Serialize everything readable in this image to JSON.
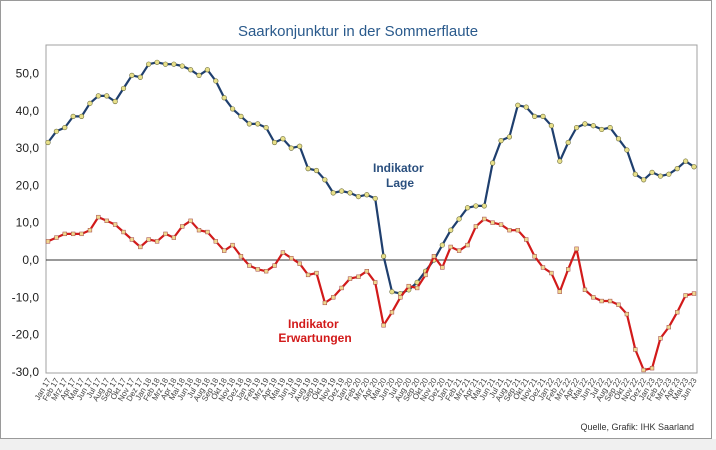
{
  "chart_data": {
    "type": "line",
    "title": "Saarkonjunktur in der Sommerflaute",
    "source": "Quelle, Grafik: IHK Saarland",
    "xlabel": "",
    "ylabel": "",
    "ylim": [
      -30,
      57.5
    ],
    "yticks": [
      50,
      40,
      30,
      20,
      10,
      0,
      -10,
      -20,
      -30
    ],
    "ytick_labels": [
      "50,0",
      "40,0",
      "30,0",
      "20,0",
      "10,0",
      "0,0",
      "-10,0",
      "-20,0",
      "-30,0"
    ],
    "grid": false,
    "categories": [
      "Jan 17",
      "Feb 17",
      "Mrz 17",
      "Apr 17",
      "Mai 17",
      "Jun 17",
      "Jul 17",
      "Aug 17",
      "Sep 17",
      "Okt 17",
      "Nov 17",
      "Dez 17",
      "Jan 18",
      "Feb 18",
      "Mrz 18",
      "Apr 18",
      "Mai 18",
      "Jun 18",
      "Jul 18",
      "Aug 18",
      "Sep 18",
      "Okt 18",
      "Nov 18",
      "Dez 18",
      "Jan 19",
      "Feb 19",
      "Mrz 19",
      "Apr 19",
      "Mai 19",
      "Jun 19",
      "Jul 19",
      "Aug 19",
      "Sep 19",
      "Okt 19",
      "Nov 19",
      "Dez 19",
      "Jan 20",
      "Feb 20",
      "Mrz 20",
      "Apr 20",
      "Mai 20",
      "Jun 20",
      "Jul 20",
      "Aug 20",
      "Sep 20",
      "Okt 20",
      "Nov 20",
      "Dez 20",
      "Jan 21",
      "Feb 21",
      "Mrz 21",
      "Apr 21",
      "Mai 21",
      "Jun 21",
      "Jul 21",
      "Aug 21",
      "Sep 21",
      "Okt 21",
      "Nov 21",
      "Dez 21",
      "Jan 22",
      "Feb 22",
      "Mrz 22",
      "Apr 22",
      "Mai 22",
      "Jun 22",
      "Jul 22",
      "Aug 22",
      "Sep 22",
      "Okt 22",
      "Nov 22",
      "Dez 22",
      "Jan 23",
      "Feb 23",
      "Mrz 23",
      "Apr 23",
      "Mai 23",
      "Jun 23"
    ],
    "series": [
      {
        "name": "Indikator Lage",
        "label_lines": [
          "Indikator",
          "Lage"
        ],
        "color": "#1f3f6e",
        "values": [
          31.5,
          34.5,
          35.5,
          38.5,
          38.5,
          42,
          44,
          44,
          42.5,
          46,
          49.5,
          49,
          52.5,
          53,
          52.5,
          52.5,
          52,
          51,
          49.5,
          51,
          48,
          43.5,
          40.5,
          38.5,
          36.5,
          36.5,
          35.5,
          31.5,
          32.5,
          30,
          30.5,
          24.5,
          24,
          21.5,
          18,
          18.5,
          18,
          17,
          17.5,
          16.5,
          1,
          -8.5,
          -9,
          -8,
          -6,
          -3,
          0,
          4,
          8,
          11,
          14,
          14.5,
          14.5,
          26,
          32,
          33,
          41.5,
          41,
          38.5,
          38.5,
          36,
          26.5,
          31.5,
          35.5,
          36.5,
          36,
          35,
          35.5,
          32.5,
          29.5,
          23,
          21.5,
          23.5,
          22.5,
          23,
          24.5,
          26.5,
          25
        ]
      },
      {
        "name": "Indikator Erwartungen",
        "label_lines": [
          "Indikator",
          "Erwartungen"
        ],
        "color": "#d21a1a",
        "values": [
          5,
          6,
          7,
          7,
          7,
          8,
          11.5,
          10.5,
          9.5,
          7.5,
          5.5,
          3.5,
          5.5,
          5,
          7,
          6,
          9,
          10.5,
          8,
          7.5,
          5,
          2.5,
          4,
          1,
          -1.5,
          -2.5,
          -3,
          -1.5,
          2,
          0.5,
          -1,
          -4,
          -3.5,
          -11.5,
          -10,
          -7.5,
          -5,
          -4.5,
          -3,
          -6,
          -17.5,
          -14,
          -10,
          -7,
          -7.5,
          -4,
          1,
          -2,
          3.5,
          2.5,
          4,
          9,
          11,
          10,
          9.5,
          8,
          8,
          5.5,
          1,
          -2,
          -3.5,
          -8.5,
          -2.5,
          3,
          -8,
          -10,
          -11,
          -11,
          -12,
          -14.5,
          -24,
          -29.5,
          -29,
          -21,
          -18,
          -14,
          -9.5,
          -9
        ]
      }
    ]
  }
}
